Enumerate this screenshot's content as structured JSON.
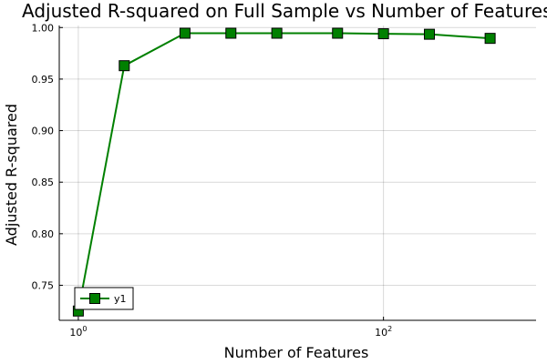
{
  "chart_data": {
    "type": "line",
    "title": "Adjusted R-squared on Full Sample vs Number of Features",
    "xlabel": "Number of Features",
    "ylabel": "Adjusted R-squared",
    "x_scale": "log10",
    "xlim": [
      0.75,
      1000
    ],
    "ylim": [
      0.716,
      1.002
    ],
    "x_ticks": [
      1,
      100
    ],
    "x_tick_labels": [
      {
        "base": "10",
        "exp": "0"
      },
      {
        "base": "10",
        "exp": "2"
      }
    ],
    "y_ticks": [
      0.75,
      0.8,
      0.85,
      0.9,
      0.95,
      1.0
    ],
    "y_tick_labels": [
      "0.75",
      "0.80",
      "0.85",
      "0.90",
      "0.95",
      "1.00"
    ],
    "grid": true,
    "legend_position": "bottom-left",
    "series": [
      {
        "name": "y1",
        "color": "#008000",
        "marker": "square",
        "x": [
          1,
          2,
          5,
          10,
          20,
          50,
          100,
          200,
          500
        ],
        "y": [
          0.725,
          0.963,
          0.9945,
          0.9945,
          0.9945,
          0.9945,
          0.994,
          0.9935,
          0.9895
        ]
      }
    ]
  }
}
